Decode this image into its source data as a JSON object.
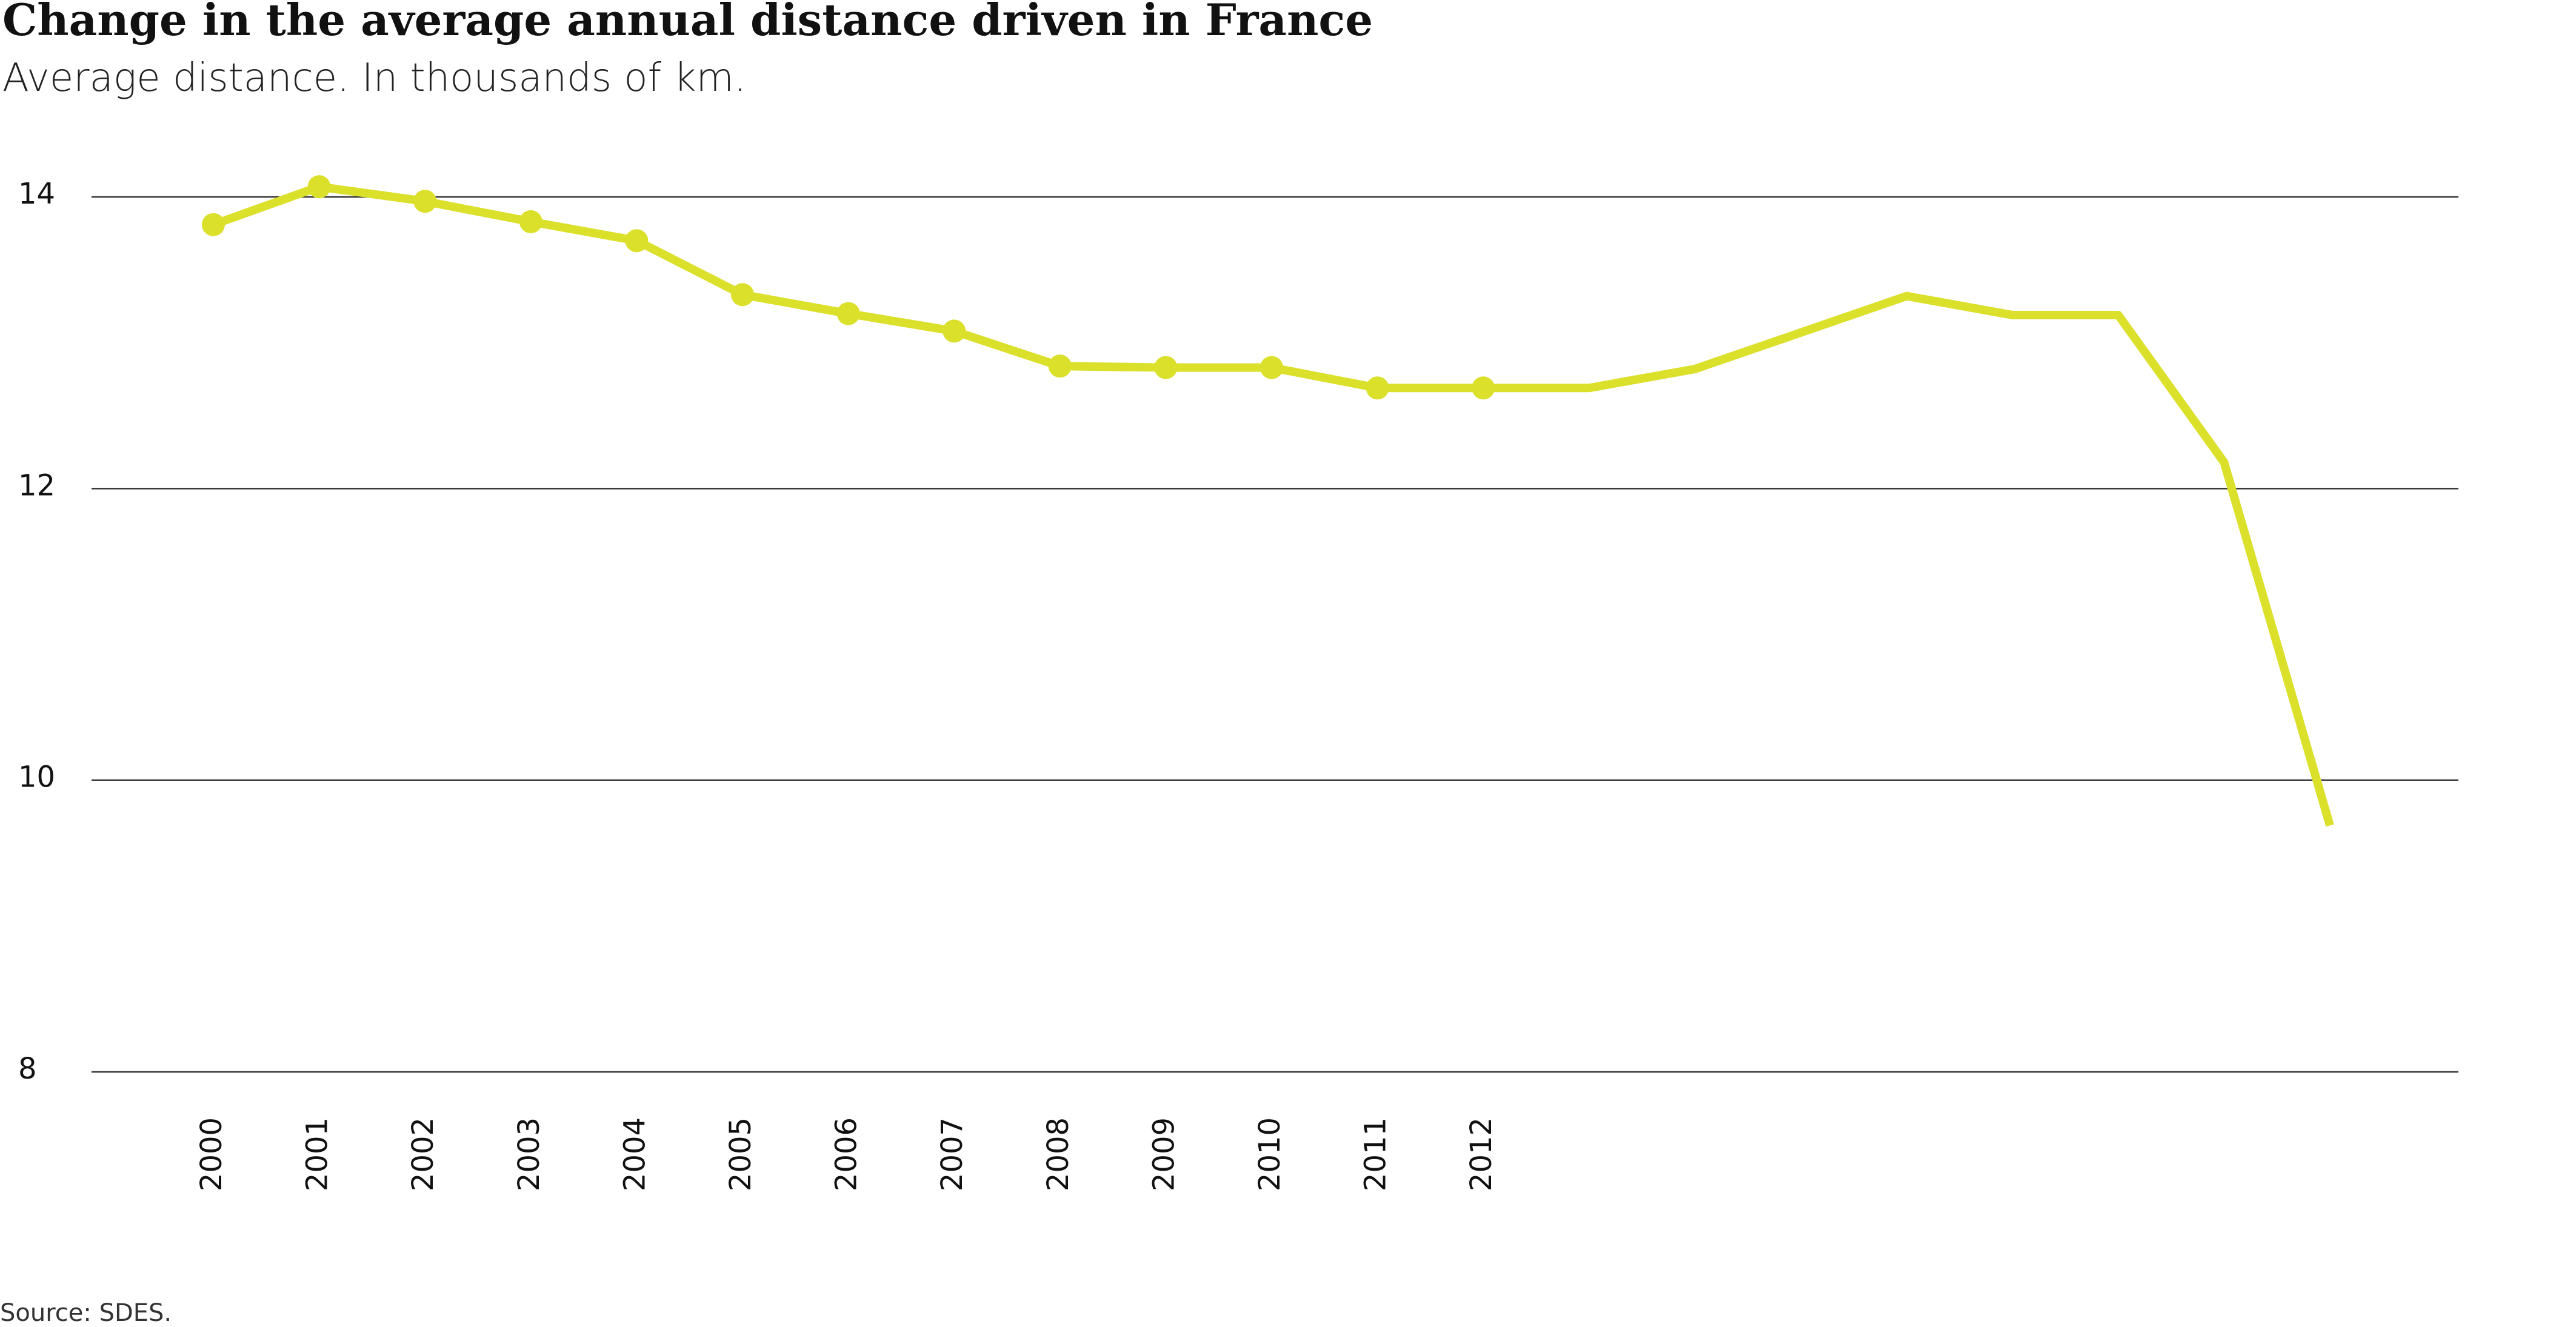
{
  "chart_data": {
    "type": "line",
    "title": "Change in the average annual distance driven in France",
    "subtitle": "Average distance. In thousands of km.",
    "source": "Source: SDES.",
    "categories": [
      "2000",
      "2001",
      "2002",
      "2003",
      "2004",
      "2005",
      "2006",
      "2007",
      "2008",
      "2009",
      "2010",
      "2011",
      "2012",
      null,
      null,
      null,
      null,
      null,
      null,
      null,
      null
    ],
    "values": [
      13.81,
      14.07,
      13.97,
      13.83,
      13.7,
      13.33,
      13.2,
      13.08,
      12.84,
      12.83,
      12.83,
      12.69,
      12.69,
      12.69,
      12.82,
      13.07,
      13.32,
      13.19,
      13.19,
      12.18,
      9.69
    ],
    "color": "#dbe02a",
    "ylim": [
      8,
      14
    ],
    "yticks": [
      8,
      10,
      12,
      14
    ],
    "grid": true
  }
}
